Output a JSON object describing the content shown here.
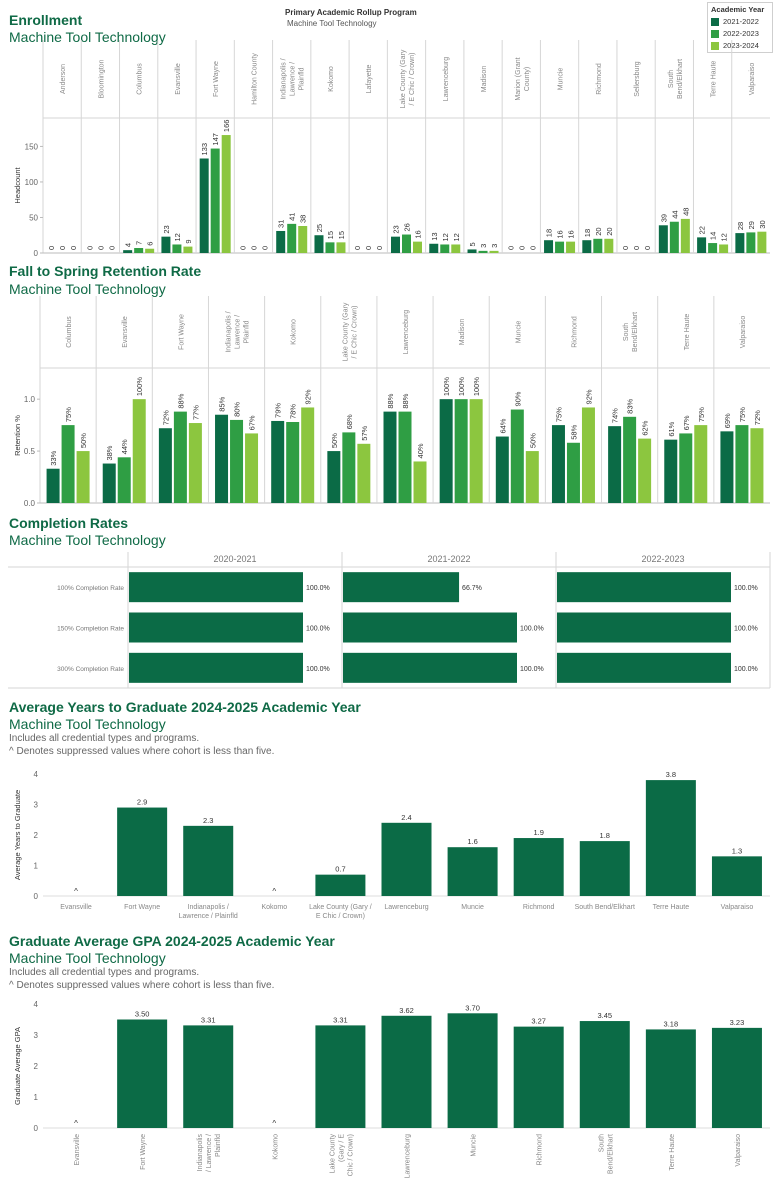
{
  "header": {
    "title": "Primary Academic Rollup Program",
    "program": "Machine Tool Technology"
  },
  "legend": {
    "title": "Academic Year",
    "items": [
      "2021-2022",
      "2022-2023",
      "2023-2024"
    ]
  },
  "colors": {
    "dark": "#0b6b46",
    "mid": "#2f9e44",
    "light": "#8cc63f",
    "grid": "#d6d6d6",
    "title": "#0f6a46"
  },
  "sections": {
    "enrollment": {
      "title": "Enrollment",
      "subtitle": "Machine Tool Technology"
    },
    "retention": {
      "title": "Fall to Spring Retention Rate",
      "subtitle": "Machine Tool Technology"
    },
    "completion": {
      "title": "Completion Rates",
      "subtitle": "Machine Tool Technology"
    },
    "years": {
      "title": "Average Years to Graduate 2024-2025 Academic Year",
      "subtitle": "Machine Tool Technology",
      "note1": "Includes all credential types and programs.",
      "note2": "^ Denotes suppressed values where cohort is less than five."
    },
    "gpa": {
      "title": "Graduate Average GPA 2024-2025 Academic Year",
      "subtitle": "Machine Tool Technology",
      "note1": "Includes all credential types and programs.",
      "note2": "^ Denotes suppressed values where cohort is less than five."
    }
  },
  "chart_data": [
    {
      "id": "enrollment",
      "type": "bar",
      "ylabel": "Headcount",
      "ylim": [
        0,
        190
      ],
      "yticks": [
        0,
        50,
        100,
        150
      ],
      "categories": [
        "Anderson",
        "Bloomington",
        "Columbus",
        "Evansville",
        "Fort Wayne",
        "Hamilton County",
        "Indianapolis / Lawrence / Plainfld",
        "Kokomo",
        "Lafayette",
        "Lake County (Gary / E Chic / Crown)",
        "Lawrenceburg",
        "Madison",
        "Marion (Grant County)",
        "Muncie",
        "Richmond",
        "Sellersburg",
        "South Bend/Elkhart",
        "Terre Haute",
        "Valparaiso"
      ],
      "series": [
        {
          "name": "2021-2022",
          "values": [
            0,
            0,
            4,
            23,
            133,
            0,
            31,
            25,
            0,
            23,
            13,
            5,
            0,
            18,
            18,
            0,
            39,
            22,
            28
          ]
        },
        {
          "name": "2022-2023",
          "values": [
            0,
            0,
            7,
            12,
            147,
            0,
            41,
            15,
            0,
            26,
            12,
            3,
            0,
            16,
            20,
            0,
            44,
            14,
            29
          ]
        },
        {
          "name": "2023-2024",
          "values": [
            0,
            0,
            6,
            9,
            166,
            0,
            38,
            15,
            0,
            16,
            12,
            3,
            0,
            16,
            20,
            0,
            48,
            12,
            30
          ]
        }
      ],
      "labels": [
        [
          "0",
          "0",
          "4",
          "23",
          "133",
          "0",
          "31",
          "25",
          "0",
          "23",
          "13",
          "5",
          "0",
          "18",
          "18",
          "0",
          "39",
          "22",
          "28"
        ],
        [
          "0",
          "0",
          "7",
          "12",
          "147",
          "0",
          "41",
          "15",
          "0",
          "26",
          "12",
          "3",
          "0",
          "16",
          "20",
          "0",
          "44",
          "14",
          "29"
        ],
        [
          "0",
          "0",
          "6",
          "9",
          "166",
          "0",
          "38",
          "15",
          "0",
          "16",
          "12",
          "3",
          "0",
          "16",
          "20",
          "0",
          "48",
          "12",
          "30"
        ]
      ]
    },
    {
      "id": "retention",
      "type": "bar",
      "ylabel": "Retention %",
      "ylim": [
        0,
        1.3
      ],
      "yticks": [
        0,
        0.5,
        1
      ],
      "ytick_labels": [
        "0.0",
        "0.5",
        "1.0"
      ],
      "categories": [
        "Columbus",
        "Evansville",
        "Fort Wayne",
        "Indianapolis / Lawrence / Plainfld",
        "Kokomo",
        "Lake County (Gary / E Chic / Crown)",
        "Lawrenceburg",
        "Madison",
        "Muncie",
        "Richmond",
        "South Bend/Elkhart",
        "Terre Haute",
        "Valparaiso"
      ],
      "series": [
        {
          "name": "2021-2022",
          "values": [
            0.33,
            0.38,
            0.72,
            0.85,
            0.79,
            0.5,
            0.88,
            1.0,
            0.64,
            0.75,
            0.74,
            0.61,
            0.69
          ]
        },
        {
          "name": "2022-2023",
          "values": [
            0.75,
            0.44,
            0.88,
            0.8,
            0.78,
            0.68,
            0.88,
            1.0,
            0.9,
            0.58,
            0.83,
            0.67,
            0.75
          ]
        },
        {
          "name": "2023-2024",
          "values": [
            0.5,
            1.0,
            0.77,
            0.67,
            0.92,
            0.57,
            0.4,
            1.0,
            0.5,
            0.92,
            0.62,
            0.75,
            0.72
          ]
        }
      ],
      "labels": [
        [
          "33%",
          "38%",
          "72%",
          "85%",
          "79%",
          "50%",
          "88%",
          "100%",
          "64%",
          "75%",
          "74%",
          "61%",
          "69%"
        ],
        [
          "75%",
          "44%",
          "88%",
          "80%",
          "78%",
          "68%",
          "88%",
          "100%",
          "90%",
          "58%",
          "83%",
          "67%",
          "75%"
        ],
        [
          "50%",
          "100%",
          "77%",
          "67%",
          "92%",
          "57%",
          "40%",
          "100%",
          "50%",
          "92%",
          "62%",
          "75%",
          "72%"
        ]
      ]
    },
    {
      "id": "completion",
      "type": "bar",
      "orientation": "horizontal",
      "columns": [
        "2020-2021",
        "2021-2022",
        "2022-2023"
      ],
      "rows": [
        "100% Completion Rate",
        "150% Completion Rate",
        "300% Completion Rate"
      ],
      "values": [
        [
          100.0,
          66.7,
          100.0
        ],
        [
          100.0,
          100.0,
          100.0
        ],
        [
          100.0,
          100.0,
          100.0
        ]
      ],
      "labels": [
        [
          "100.0%",
          "66.7%",
          "100.0%"
        ],
        [
          "100.0%",
          "100.0%",
          "100.0%"
        ],
        [
          "100.0%",
          "100.0%",
          "100.0%"
        ]
      ],
      "xlim": [
        0,
        100
      ]
    },
    {
      "id": "years",
      "type": "bar",
      "ylabel": "Average Years to Graduate",
      "ylim": [
        0,
        4
      ],
      "yticks": [
        0,
        1,
        2,
        3,
        4
      ],
      "categories": [
        "Evansville",
        "Fort Wayne",
        "Indianapolis / Lawrence / Plainfld",
        "Kokomo",
        "Lake County (Gary / E Chic / Crown)",
        "Lawrenceburg",
        "Muncie",
        "Richmond",
        "South Bend/Elkhart",
        "Terre Haute",
        "Valparaiso"
      ],
      "values": [
        null,
        2.9,
        2.3,
        null,
        0.7,
        2.4,
        1.6,
        1.9,
        1.8,
        3.8,
        1.3
      ],
      "labels": [
        "^",
        "2.9",
        "2.3",
        "^",
        "0.7",
        "2.4",
        "1.6",
        "1.9",
        "1.8",
        "3.8",
        "1.3"
      ]
    },
    {
      "id": "gpa",
      "type": "bar",
      "ylabel": "Graduate Average GPA",
      "ylim": [
        0,
        4
      ],
      "yticks": [
        0,
        1,
        2,
        3,
        4
      ],
      "categories": [
        "Evansville",
        "Fort Wayne",
        "Indianapolis / Lawrence / Plainfld",
        "Kokomo",
        "Lake County (Gary / E Chic / Crown)",
        "Lawrenceburg",
        "Muncie",
        "Richmond",
        "South Bend/Elkhart",
        "Terre Haute",
        "Valparaiso"
      ],
      "values": [
        null,
        3.5,
        3.31,
        null,
        3.31,
        3.62,
        3.7,
        3.27,
        3.45,
        3.18,
        3.23
      ],
      "labels": [
        "^",
        "3.50",
        "3.31",
        "^",
        "3.31",
        "3.62",
        "3.70",
        "3.27",
        "3.45",
        "3.18",
        "3.23"
      ]
    }
  ]
}
